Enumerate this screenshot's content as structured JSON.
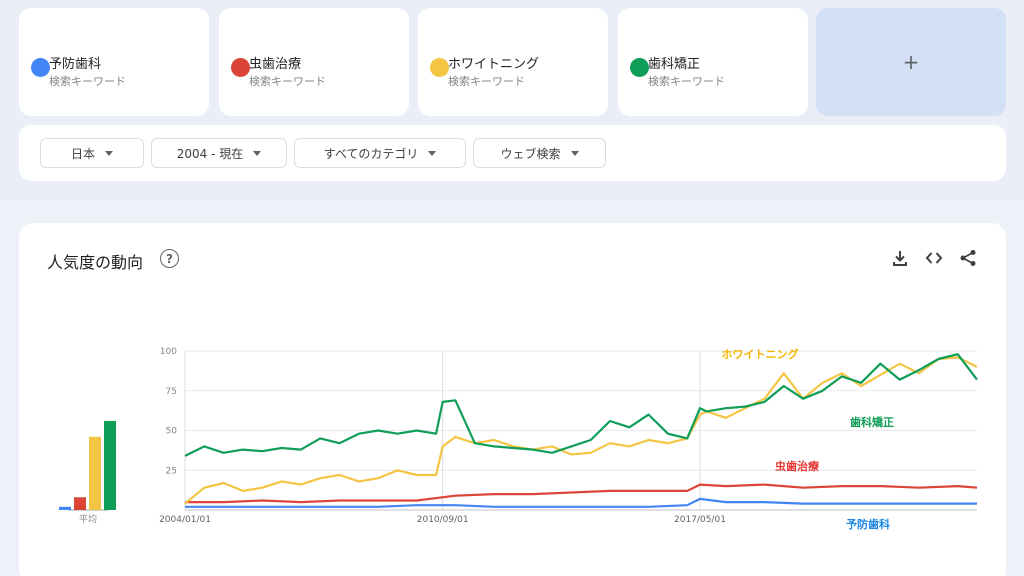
{
  "terms": [
    {
      "name": "予防歯科",
      "sub": "検索キーワード",
      "color": "#4285f4"
    },
    {
      "name": "虫歯治療",
      "sub": "検索キーワード",
      "color": "#db4437"
    },
    {
      "name": "ホワイトニング",
      "sub": "検索キーワード",
      "color": "#f4c542"
    },
    {
      "name": "歯科矯正",
      "sub": "検索キーワード",
      "color": "#0f9d58"
    }
  ],
  "add_label": "+",
  "filters": {
    "region": "日本",
    "period": "2004 - 現在",
    "category": "すべてのカテゴリ",
    "search_type": "ウェブ検索"
  },
  "chart_section": {
    "title": "人気度の動向",
    "help_icon": "help-icon",
    "download_icon": "download-icon",
    "embed_icon": "embed-icon",
    "share_icon": "share-icon"
  },
  "chart_data": {
    "type": "line",
    "y_ticks": [
      "100",
      "75",
      "50",
      "25"
    ],
    "ylim": [
      0,
      100
    ],
    "x_tick_labels": [
      "2004/01/01",
      "2010/09/01",
      "2017/05/01"
    ],
    "x_start_year": 2004,
    "x_end_year": 2024.5,
    "x_tick_years": [
      2004.0,
      2010.67,
      2017.33
    ],
    "grid": true,
    "series": [
      {
        "name": "ホワイトニング",
        "color": "#f4c542",
        "label_color": "#f4b400",
        "x": [
          2004,
          2004.5,
          2005,
          2005.5,
          2006,
          2006.5,
          2007,
          2007.5,
          2008,
          2008.5,
          2009,
          2009.5,
          2010,
          2010.5,
          2010.67,
          2011,
          2011.5,
          2012,
          2012.5,
          2013,
          2013.5,
          2014,
          2014.5,
          2015,
          2015.5,
          2016,
          2016.5,
          2017,
          2017.33,
          2017.5,
          2018,
          2018.5,
          2019,
          2019.5,
          2020,
          2020.5,
          2021,
          2021.5,
          2022,
          2022.5,
          2023,
          2023.5,
          2024,
          2024.5
        ],
        "values": [
          4,
          14,
          17,
          12,
          14,
          18,
          16,
          20,
          22,
          18,
          20,
          25,
          22,
          22,
          40,
          46,
          42,
          44,
          40,
          38,
          40,
          35,
          36,
          42,
          40,
          44,
          42,
          45,
          60,
          62,
          58,
          64,
          70,
          86,
          70,
          80,
          86,
          78,
          85,
          92,
          86,
          95,
          96,
          90
        ]
      },
      {
        "name": "歯科矯正",
        "color": "#0f9d58",
        "label_color": "#0f9d58",
        "x": [
          2004,
          2004.5,
          2005,
          2005.5,
          2006,
          2006.5,
          2007,
          2007.5,
          2008,
          2008.5,
          2009,
          2009.5,
          2010,
          2010.5,
          2010.67,
          2011,
          2011.5,
          2012,
          2012.5,
          2013,
          2013.5,
          2014,
          2014.5,
          2015,
          2015.5,
          2016,
          2016.5,
          2017,
          2017.33,
          2017.5,
          2018,
          2018.5,
          2019,
          2019.5,
          2020,
          2020.5,
          2021,
          2021.5,
          2022,
          2022.5,
          2023,
          2023.5,
          2024,
          2024.5
        ],
        "values": [
          34,
          40,
          36,
          38,
          37,
          39,
          38,
          45,
          42,
          48,
          50,
          48,
          50,
          48,
          68,
          69,
          42,
          40,
          39,
          38,
          36,
          40,
          44,
          56,
          52,
          60,
          48,
          45,
          64,
          62,
          64,
          65,
          68,
          78,
          70,
          75,
          84,
          80,
          92,
          82,
          88,
          95,
          98,
          82
        ]
      },
      {
        "name": "虫歯治療",
        "color": "#db4437",
        "label_color": "#e53935",
        "x": [
          2004,
          2005,
          2006,
          2007,
          2008,
          2009,
          2010,
          2011,
          2012,
          2013,
          2014,
          2015,
          2016,
          2017,
          2017.33,
          2018,
          2019,
          2020,
          2021,
          2022,
          2023,
          2024,
          2024.5
        ],
        "values": [
          5,
          5,
          6,
          5,
          6,
          6,
          6,
          9,
          10,
          10,
          11,
          12,
          12,
          12,
          16,
          15,
          16,
          14,
          15,
          15,
          14,
          15,
          14
        ]
      },
      {
        "name": "予防歯科",
        "color": "#4285f4",
        "label_color": "#1e88e5",
        "x": [
          2004,
          2005,
          2006,
          2007,
          2008,
          2009,
          2010,
          2011,
          2012,
          2013,
          2014,
          2015,
          2016,
          2017,
          2017.33,
          2018,
          2019,
          2020,
          2021,
          2022,
          2023,
          2024,
          2024.5
        ],
        "values": [
          2,
          2,
          2,
          2,
          2,
          2,
          3,
          3,
          2,
          2,
          2,
          2,
          2,
          3,
          7,
          5,
          5,
          4,
          4,
          4,
          4,
          4,
          4
        ]
      }
    ],
    "average": {
      "label": "平均",
      "values": [
        2,
        8,
        46,
        56
      ],
      "colors": [
        "#4285f4",
        "#db4437",
        "#f4c542",
        "#0f9d58"
      ]
    }
  }
}
